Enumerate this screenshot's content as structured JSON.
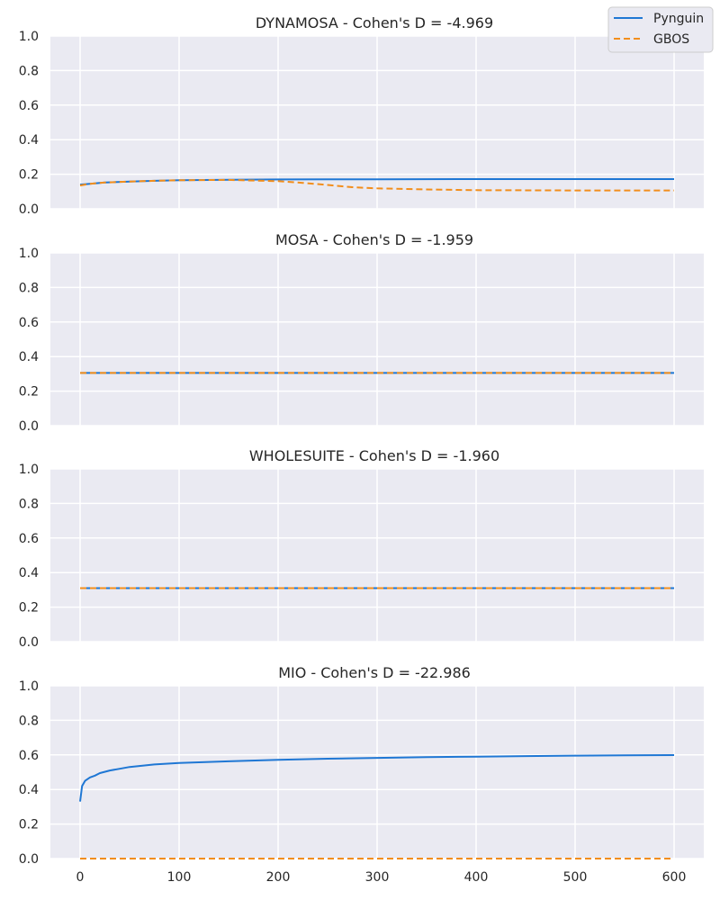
{
  "legend": {
    "entries": [
      {
        "label": "Pynguin",
        "color": "#1f77d4",
        "dash": "solid"
      },
      {
        "label": "GBOS",
        "color": "#f28e1c",
        "dash": "dashed"
      }
    ],
    "placement": "top-right"
  },
  "chart_data": [
    {
      "type": "line",
      "title": "DYNAMOSA - Cohen's D  = -4.969",
      "xlim": [
        -30,
        630
      ],
      "ylim": [
        0,
        1
      ],
      "xticks": [
        0,
        100,
        200,
        300,
        400,
        500,
        600
      ],
      "yticks": [
        "0.0",
        "0.2",
        "0.4",
        "0.6",
        "0.8",
        "1.0"
      ],
      "grid": true,
      "show_x_tick_labels": false,
      "series": [
        {
          "name": "Pynguin",
          "x": [
            0,
            10,
            25,
            50,
            75,
            100,
            150,
            200,
            250,
            300,
            400,
            500,
            600
          ],
          "values": [
            0.14,
            0.145,
            0.152,
            0.158,
            0.162,
            0.165,
            0.168,
            0.17,
            0.171,
            0.171,
            0.172,
            0.172,
            0.172
          ]
        },
        {
          "name": "GBOS",
          "x": [
            0,
            10,
            25,
            50,
            75,
            100,
            150,
            200,
            225,
            250,
            275,
            300,
            350,
            400,
            500,
            600
          ],
          "values": [
            0.135,
            0.145,
            0.152,
            0.158,
            0.162,
            0.165,
            0.167,
            0.16,
            0.15,
            0.138,
            0.125,
            0.118,
            0.112,
            0.108,
            0.106,
            0.106
          ]
        }
      ]
    },
    {
      "type": "line",
      "title": "MOSA - Cohen's D  = -1.959",
      "xlim": [
        -30,
        630
      ],
      "ylim": [
        0,
        1
      ],
      "xticks": [
        0,
        100,
        200,
        300,
        400,
        500,
        600
      ],
      "yticks": [
        "0.0",
        "0.2",
        "0.4",
        "0.6",
        "0.8",
        "1.0"
      ],
      "grid": true,
      "show_x_tick_labels": false,
      "series": [
        {
          "name": "Pynguin",
          "x": [
            0,
            600
          ],
          "values": [
            0.305,
            0.305
          ]
        },
        {
          "name": "GBOS",
          "x": [
            0,
            600
          ],
          "values": [
            0.305,
            0.305
          ]
        }
      ]
    },
    {
      "type": "line",
      "title": "WHOLESUITE - Cohen's D  = -1.960",
      "xlim": [
        -30,
        630
      ],
      "ylim": [
        0,
        1
      ],
      "xticks": [
        0,
        100,
        200,
        300,
        400,
        500,
        600
      ],
      "yticks": [
        "0.0",
        "0.2",
        "0.4",
        "0.6",
        "0.8",
        "1.0"
      ],
      "grid": true,
      "show_x_tick_labels": false,
      "series": [
        {
          "name": "Pynguin",
          "x": [
            0,
            600
          ],
          "values": [
            0.31,
            0.31
          ]
        },
        {
          "name": "GBOS",
          "x": [
            0,
            600
          ],
          "values": [
            0.31,
            0.31
          ]
        }
      ]
    },
    {
      "type": "line",
      "title": "MIO - Cohen's D  = -22.986",
      "xlim": [
        -30,
        630
      ],
      "ylim": [
        0,
        1
      ],
      "xticks": [
        0,
        100,
        200,
        300,
        400,
        500,
        600
      ],
      "xticklabels": [
        "0",
        "100",
        "200",
        "300",
        "400",
        "500",
        "600"
      ],
      "yticks": [
        "0.0",
        "0.2",
        "0.4",
        "0.6",
        "0.8",
        "1.0"
      ],
      "grid": true,
      "show_x_tick_labels": true,
      "series": [
        {
          "name": "Pynguin",
          "x": [
            0,
            2,
            5,
            10,
            15,
            20,
            30,
            40,
            50,
            75,
            100,
            150,
            200,
            250,
            300,
            350,
            400,
            450,
            500,
            550,
            600
          ],
          "values": [
            0.33,
            0.42,
            0.45,
            0.47,
            0.48,
            0.495,
            0.51,
            0.52,
            0.53,
            0.545,
            0.553,
            0.563,
            0.572,
            0.578,
            0.583,
            0.587,
            0.59,
            0.593,
            0.596,
            0.598,
            0.599
          ]
        },
        {
          "name": "GBOS",
          "x": [
            0,
            600
          ],
          "values": [
            0.0,
            0.0
          ]
        }
      ]
    }
  ]
}
